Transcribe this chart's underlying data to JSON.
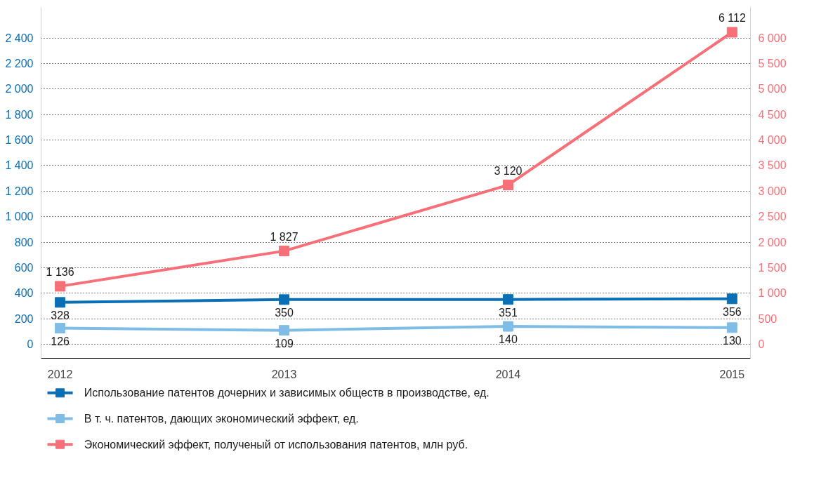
{
  "chart_data": {
    "type": "line",
    "categories": [
      "2012",
      "2013",
      "2014",
      "2015"
    ],
    "series": [
      {
        "name": "Использование патентов дочерних и зависимых обществ в производстве, ед.",
        "color": "#0a6fb5",
        "values": [
          328,
          350,
          351,
          356
        ]
      },
      {
        "name": "В т. ч. патентов, дающих экономический эффект, ед.",
        "color": "#7fbde6",
        "values": [
          126,
          109,
          140,
          130
        ]
      },
      {
        "name": "Экономический эффект, полученый от использования патентов, млн руб.",
        "color": "#f76f78",
        "values": [
          1136,
          1827,
          3120,
          6112
        ],
        "axis": "y2"
      }
    ],
    "data_labels": true,
    "ylim": [
      -110,
      2640
    ],
    "yticks": [
      0,
      200,
      400,
      600,
      800,
      {
        "value": 1000,
        "label": "1 000"
      },
      {
        "value": 1200,
        "label": "1 200"
      },
      {
        "value": 1400,
        "label": "1 400"
      },
      {
        "value": 1600,
        "label": "1 600"
      },
      {
        "value": 1800,
        "label": "1 800"
      },
      {
        "value": 2000,
        "label": "2 000"
      },
      {
        "value": 2200,
        "label": "2 200"
      },
      {
        "value": 2400,
        "label": "2 400"
      }
    ],
    "y2lim": [
      -275,
      6600
    ],
    "y2ticks": [
      0,
      500,
      {
        "value": 1000,
        "label": "1 000"
      },
      {
        "value": 1500,
        "label": "1 500"
      },
      {
        "value": 2000,
        "label": "2 000"
      },
      {
        "value": 2500,
        "label": "2 500"
      },
      {
        "value": 3000,
        "label": "3 000"
      },
      {
        "value": 3500,
        "label": "3 500"
      },
      {
        "value": 4000,
        "label": "4 000"
      },
      {
        "value": 4500,
        "label": "4 500"
      },
      {
        "value": 5000,
        "label": "5 000"
      },
      {
        "value": 5500,
        "label": "5 500"
      },
      {
        "value": 6000,
        "label": "6 000"
      }
    ],
    "grid": "y",
    "legend": "bottom",
    "marker": "square",
    "line_style": "solid"
  }
}
